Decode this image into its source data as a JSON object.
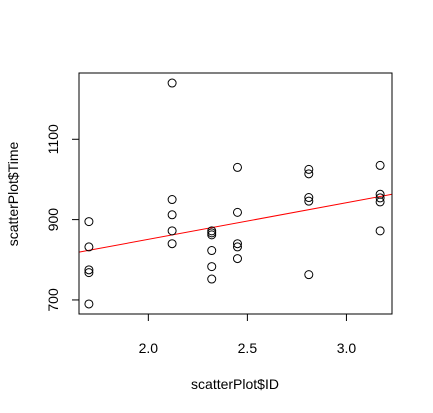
{
  "chart_data": {
    "type": "scatter",
    "title": "",
    "xlabel": "scatterPlot$ID",
    "ylabel": "scatterPlot$Time",
    "xlim": [
      1.65,
      3.23
    ],
    "ylim": [
      665,
      1265
    ],
    "xticks": [
      {
        "value": 2.0,
        "label": "2.0"
      },
      {
        "value": 2.5,
        "label": "2.5"
      },
      {
        "value": 3.0,
        "label": "3.0"
      }
    ],
    "yticks": [
      {
        "value": 700,
        "label": "700"
      },
      {
        "value": 900,
        "label": "900"
      },
      {
        "value": 1100,
        "label": "1100"
      }
    ],
    "grid": false,
    "legend": "none",
    "point_color": "#000000",
    "fit_line": {
      "x": [
        1.65,
        3.23
      ],
      "y": [
        819,
        963
      ],
      "color": "#ff0000"
    },
    "points": [
      {
        "x": 1.7,
        "y": 895
      },
      {
        "x": 1.7,
        "y": 832
      },
      {
        "x": 1.7,
        "y": 775
      },
      {
        "x": 1.7,
        "y": 768
      },
      {
        "x": 1.7,
        "y": 690
      },
      {
        "x": 2.12,
        "y": 1240
      },
      {
        "x": 2.12,
        "y": 950
      },
      {
        "x": 2.12,
        "y": 912
      },
      {
        "x": 2.12,
        "y": 872
      },
      {
        "x": 2.12,
        "y": 840
      },
      {
        "x": 2.32,
        "y": 872
      },
      {
        "x": 2.32,
        "y": 867
      },
      {
        "x": 2.32,
        "y": 862
      },
      {
        "x": 2.32,
        "y": 823
      },
      {
        "x": 2.32,
        "y": 783
      },
      {
        "x": 2.32,
        "y": 752
      },
      {
        "x": 2.45,
        "y": 1030
      },
      {
        "x": 2.45,
        "y": 918
      },
      {
        "x": 2.45,
        "y": 840
      },
      {
        "x": 2.45,
        "y": 832
      },
      {
        "x": 2.45,
        "y": 803
      },
      {
        "x": 2.81,
        "y": 1025
      },
      {
        "x": 2.81,
        "y": 1014
      },
      {
        "x": 2.81,
        "y": 955
      },
      {
        "x": 2.81,
        "y": 946
      },
      {
        "x": 2.81,
        "y": 763
      },
      {
        "x": 3.17,
        "y": 1035
      },
      {
        "x": 3.17,
        "y": 963
      },
      {
        "x": 3.17,
        "y": 954
      },
      {
        "x": 3.17,
        "y": 944
      },
      {
        "x": 3.17,
        "y": 872
      }
    ]
  }
}
